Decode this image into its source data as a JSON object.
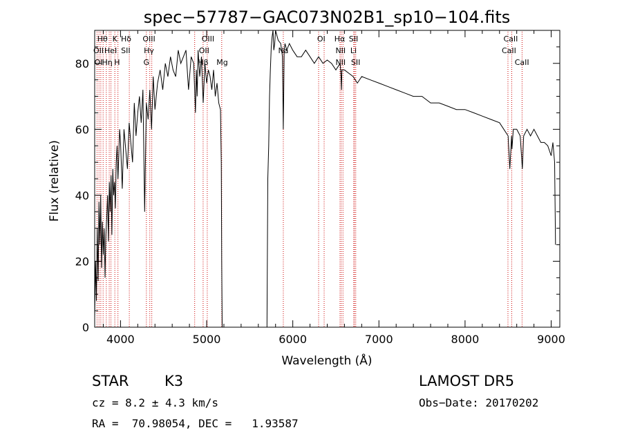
{
  "chart_data": {
    "type": "line",
    "title": "spec−57787−GAC073N02B1_sp10−104.fits",
    "xlabel": "Wavelength (Å)",
    "ylabel": "Flux (relative)",
    "xlim": [
      3700,
      9100
    ],
    "ylim": [
      0,
      90
    ],
    "xticks": [
      4000,
      5000,
      6000,
      7000,
      8000,
      9000
    ],
    "yticks": [
      0,
      20,
      40,
      60,
      80
    ],
    "grid": false,
    "series": [
      {
        "x": [
          3700,
          3710,
          3720,
          3730,
          3740,
          3750,
          3760,
          3770,
          3780,
          3790,
          3800,
          3810,
          3820,
          3830,
          3840,
          3850,
          3860,
          3870,
          3880,
          3890,
          3900,
          3910,
          3920,
          3930,
          3940,
          3950,
          3960,
          3970,
          3980,
          3990,
          4000,
          4020,
          4040,
          4060,
          4080,
          4100,
          4120,
          4140,
          4160,
          4180,
          4200,
          4220,
          4240,
          4260,
          4280,
          4300,
          4320,
          4340,
          4360,
          4380,
          4400,
          4430,
          4460,
          4490,
          4520,
          4550,
          4580,
          4610,
          4640,
          4670,
          4700,
          4730,
          4760,
          4790,
          4820,
          4850,
          4870,
          4880,
          4890,
          4900,
          4920,
          4940,
          4960,
          4980,
          5000,
          5020,
          5040,
          5060,
          5080,
          5100,
          5120,
          5140,
          5160,
          5170,
          5175,
          5180,
          5700,
          5710,
          5720,
          5730,
          5740,
          5750,
          5760,
          5770,
          5780,
          5790,
          5800,
          5830,
          5860,
          5880,
          5890,
          5895,
          5900,
          5910,
          5930,
          5960,
          6000,
          6050,
          6100,
          6150,
          6200,
          6250,
          6300,
          6350,
          6400,
          6450,
          6500,
          6550,
          6560,
          6565,
          6570,
          6600,
          6650,
          6700,
          6750,
          6800,
          6900,
          7000,
          7100,
          7200,
          7300,
          7400,
          7500,
          7600,
          7700,
          7800,
          7900,
          8000,
          8100,
          8200,
          8300,
          8400,
          8450,
          8500,
          8520,
          8540,
          8545,
          8560,
          8600,
          8640,
          8660,
          8665,
          8680,
          8720,
          8760,
          8800,
          8840,
          8880,
          8920,
          8960,
          9000,
          9020,
          9040,
          9050
        ],
        "y": [
          3,
          20,
          8,
          30,
          14,
          38,
          25,
          40,
          18,
          32,
          22,
          30,
          15,
          28,
          33,
          40,
          26,
          44,
          35,
          46,
          28,
          48,
          40,
          44,
          36,
          50,
          55,
          45,
          52,
          60,
          56,
          42,
          60,
          54,
          48,
          62,
          56,
          50,
          68,
          58,
          65,
          70,
          62,
          72,
          35,
          68,
          63,
          72,
          60,
          76,
          66,
          74,
          78,
          72,
          80,
          76,
          82,
          78,
          76,
          84,
          80,
          82,
          84,
          72,
          82,
          80,
          65,
          78,
          70,
          84,
          76,
          82,
          68,
          80,
          74,
          78,
          76,
          72,
          78,
          70,
          74,
          68,
          66,
          50,
          20,
          0,
          0,
          45,
          55,
          70,
          78,
          85,
          88,
          90,
          84,
          86,
          90,
          87,
          86,
          82,
          60,
          72,
          84,
          86,
          84,
          86,
          84,
          82,
          82,
          84,
          82,
          80,
          82,
          80,
          81,
          80,
          78,
          80,
          76,
          72,
          78,
          78,
          77,
          76,
          74,
          76,
          75,
          74,
          73,
          72,
          71,
          70,
          70,
          68,
          68,
          67,
          66,
          66,
          65,
          64,
          63,
          62,
          60,
          58,
          48,
          58,
          54,
          60,
          60,
          58,
          50,
          48,
          58,
          60,
          58,
          60,
          58,
          56,
          56,
          55,
          52,
          56,
          50,
          25
        ]
      }
    ],
    "annotations": {
      "lines": [
        3727,
        3750,
        3771,
        3798,
        3835,
        3869,
        3889,
        3934,
        3970,
        4102,
        4300,
        4340,
        4363,
        4861,
        4959,
        5007,
        5175,
        5890,
        6300,
        6364,
        6548,
        6563,
        6583,
        6708,
        6716,
        6731,
        8498,
        8542,
        8662
      ],
      "labels": [
        {
          "text": "Hθ",
          "x": 3790,
          "row": 0
        },
        {
          "text": "K",
          "x": 3935,
          "row": 0
        },
        {
          "text": "Hδ",
          "x": 4065,
          "row": 0
        },
        {
          "text": "OIII",
          "x": 4330,
          "row": 0
        },
        {
          "text": "OIII",
          "x": 5015,
          "row": 0
        },
        {
          "text": "OI",
          "x": 6330,
          "row": 0
        },
        {
          "text": "Hα",
          "x": 6545,
          "row": 0
        },
        {
          "text": "SII",
          "x": 6705,
          "row": 0
        },
        {
          "text": "CaII",
          "x": 8530,
          "row": 0
        },
        {
          "text": "OII",
          "x": 3745,
          "row": 1
        },
        {
          "text": "HeI",
          "x": 3885,
          "row": 1
        },
        {
          "text": "SII",
          "x": 4060,
          "row": 1
        },
        {
          "text": "Hγ",
          "x": 4330,
          "row": 1
        },
        {
          "text": "OII",
          "x": 4970,
          "row": 1
        },
        {
          "text": "Na",
          "x": 5890,
          "row": 1
        },
        {
          "text": "NII",
          "x": 6555,
          "row": 1
        },
        {
          "text": "Li",
          "x": 6705,
          "row": 1
        },
        {
          "text": "CaII",
          "x": 8510,
          "row": 1
        },
        {
          "text": "OI",
          "x": 3745,
          "row": 2
        },
        {
          "text": "Hη",
          "x": 3845,
          "row": 2
        },
        {
          "text": "H",
          "x": 3960,
          "row": 2
        },
        {
          "text": "G",
          "x": 4300,
          "row": 2
        },
        {
          "text": "Hβ",
          "x": 4960,
          "row": 2
        },
        {
          "text": "Mg",
          "x": 5180,
          "row": 2
        },
        {
          "text": "NII",
          "x": 6555,
          "row": 2
        },
        {
          "text": "SII",
          "x": 6730,
          "row": 2
        },
        {
          "text": "CaII",
          "x": 8660,
          "row": 2
        }
      ]
    }
  },
  "info": {
    "object_type": "STAR",
    "subclass": "K3",
    "survey": "LAMOST DR5",
    "cz": "cz = 8.2 ± 4.3 km/s",
    "obs_date": "Obs−Date: 20170202",
    "coords": "RA =  70.98054, DEC =   1.93587"
  },
  "colors": {
    "line": "#000000",
    "marker": "#cc0000",
    "background": "#ffffff"
  }
}
